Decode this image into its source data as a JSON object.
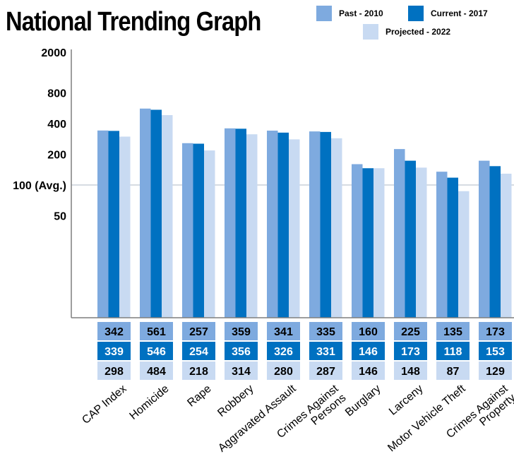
{
  "chart_data": {
    "type": "bar",
    "title": "National Trending Graph",
    "yscale": "log",
    "ylim": [
      25,
      2000
    ],
    "y_ticks": [
      {
        "value": 2000,
        "label": "2000"
      },
      {
        "value": 800,
        "label": "800"
      },
      {
        "value": 400,
        "label": "400"
      },
      {
        "value": 200,
        "label": "200"
      },
      {
        "value": 100,
        "label": "100 (Avg.)"
      },
      {
        "value": 50,
        "label": "50"
      }
    ],
    "reference_line": 100,
    "categories": [
      [
        "CAP Index"
      ],
      [
        "Homicide"
      ],
      [
        "Rape"
      ],
      [
        "Robbery"
      ],
      [
        "Aggravated Assault"
      ],
      [
        "Crimes Against",
        "Persons"
      ],
      [
        "Burglary"
      ],
      [
        "Larceny"
      ],
      [
        "Motor Vehicle Theft"
      ],
      [
        "Crimes Against",
        "Property"
      ]
    ],
    "series": [
      {
        "name": "Past - 2010",
        "color": "#7eaadf",
        "values": [
          342,
          561,
          257,
          359,
          341,
          335,
          160,
          225,
          135,
          173
        ]
      },
      {
        "name": "Current - 2017",
        "color": "#0071c1",
        "values": [
          339,
          546,
          254,
          356,
          326,
          331,
          146,
          173,
          118,
          153
        ]
      },
      {
        "name": "Projected - 2022",
        "color": "#c8daf2",
        "values": [
          298,
          484,
          218,
          314,
          280,
          287,
          146,
          148,
          87,
          129
        ]
      }
    ],
    "legend_position": "top-right",
    "grid": false
  },
  "colors": {
    "axis": "#7f7f7f",
    "reference_line": "#aeb9c6"
  }
}
